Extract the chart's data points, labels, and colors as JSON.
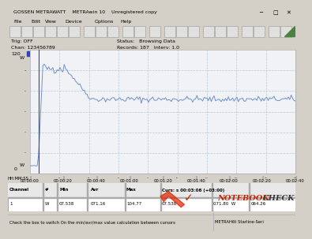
{
  "title_text": "GOSSEN METRAWATT    METRAwin 10    Unregistered copy",
  "tag": "Trig: OFF",
  "chan": "Chan: 123456789",
  "status": "Status:   Browsing Data",
  "records": "Records: 187   Interv: 1.0",
  "y_max": 120,
  "y_min": 0,
  "x_ticks": [
    "HH:MM:SS",
    "00:00:00",
    "00:00:20",
    "00:00:40",
    "00:01:00",
    "00:01:20",
    "00:01:40",
    "00:02:00",
    "00:02:20",
    "00:02:40"
  ],
  "baseline_value": 7.5,
  "peak_value": 105,
  "stable_value": 72,
  "total_points": 187,
  "line_color": "#7090cc",
  "plot_bg_color": "#f4f6f8",
  "grid_color": "#c0c8d0",
  "window_bg": "#d4d0c8",
  "plot_area_bg": "#eef0f4",
  "table_bg": "#ffffff",
  "table_border": "#888888",
  "footer_left": "Check the box to switch On the min/avr/max value calculation between cursors",
  "footer_right": "METRAH6t Starline-Seri",
  "col_header": [
    "Channel",
    "#",
    "Min",
    "Avr",
    "Max",
    "Curs: s 00:03:06 (+03:00)"
  ],
  "row_data": [
    "1",
    "W",
    "07.538",
    "071.16",
    "104.77",
    "07.538",
    "071.80  W",
    "064.26"
  ],
  "nb_check_color": "#cc2200",
  "nb_text_color": "#222222",
  "titlebar_bg": "#d4d0c8",
  "menubar_bg": "#d4d0c8",
  "toolbar_bg": "#d4d0c8"
}
